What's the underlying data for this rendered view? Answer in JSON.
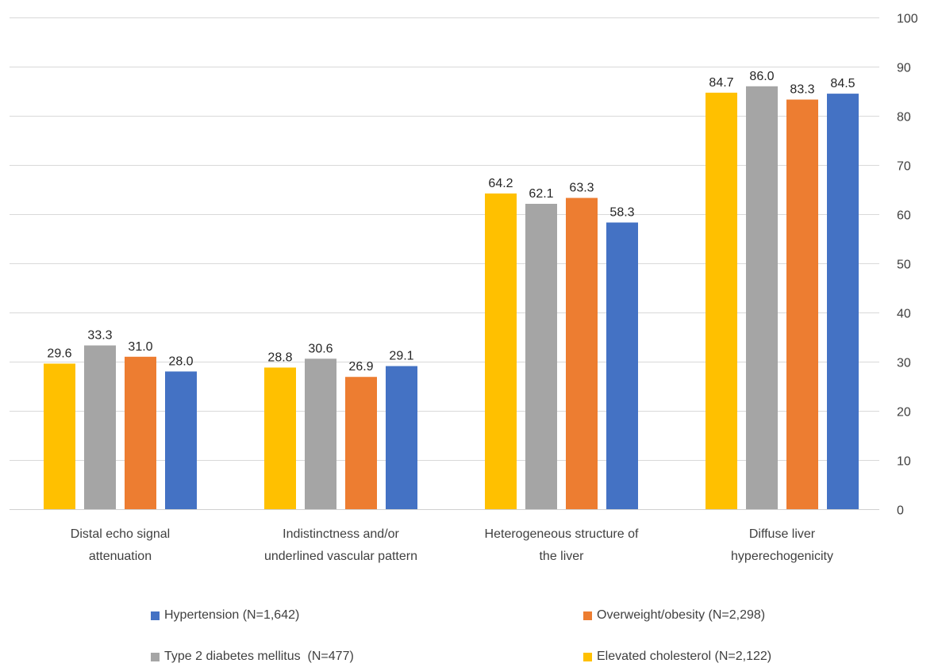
{
  "chart_data": {
    "type": "bar",
    "title": "",
    "xlabel": "",
    "ylabel": "",
    "ylim": [
      0,
      100
    ],
    "y_ticks": [
      "0",
      "10",
      "20",
      "30",
      "40",
      "50",
      "60",
      "70",
      "80",
      "90",
      "100"
    ],
    "y_axis_position": "right",
    "grid": true,
    "legend_position": "bottom",
    "categories": [
      [
        "Distal echo signal",
        "attenuation"
      ],
      [
        "Indistinctness and/or",
        "underlined vascular pattern"
      ],
      [
        "Heterogeneous structure of",
        "the liver"
      ],
      [
        "Diffuse liver",
        "hyperechogenicity"
      ]
    ],
    "series": [
      {
        "name": "Elevated cholesterol (N=2,122)",
        "color": "#FFC000",
        "values": [
          29.6,
          28.8,
          64.2,
          84.7
        ]
      },
      {
        "name": "Type 2 diabetes mellitus  (N=477)",
        "color": "#A5A5A5",
        "values": [
          33.3,
          30.6,
          62.1,
          86.0
        ]
      },
      {
        "name": "Overweight/obesity (N=2,298)",
        "color": "#ED7D31",
        "values": [
          31.0,
          26.9,
          63.3,
          83.3
        ]
      },
      {
        "name": "Hypertension (N=1,642)",
        "color": "#4472C4",
        "values": [
          28.0,
          29.1,
          58.3,
          84.5
        ]
      }
    ],
    "legend_order": [
      3,
      2,
      1,
      0
    ]
  }
}
